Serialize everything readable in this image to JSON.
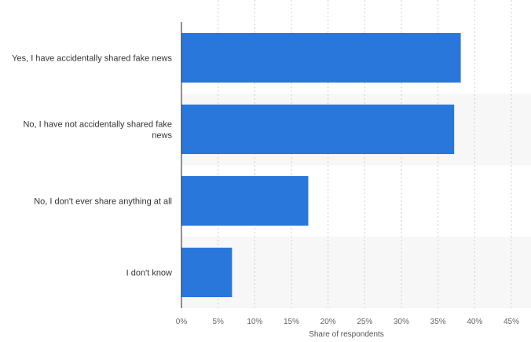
{
  "chart_data": {
    "type": "bar",
    "orientation": "horizontal",
    "categories": [
      "Yes, I have accidentally shared fake news",
      "No, I have not accidentally shared fake news",
      "No, I don't ever share anything at all",
      "I don't know"
    ],
    "values": [
      38.1,
      37.2,
      17.3,
      6.9
    ],
    "units": "%",
    "xlabel": "Share of respondents",
    "ylabel": "",
    "xlim": [
      0,
      45
    ],
    "xticks": [
      "0%",
      "5%",
      "10%",
      "15%",
      "20%",
      "25%",
      "30%",
      "35%",
      "40%",
      "45%"
    ],
    "colors": {
      "bar": "#2a77db",
      "band": "#f7f7f7"
    },
    "grid": true,
    "legend": "none"
  }
}
